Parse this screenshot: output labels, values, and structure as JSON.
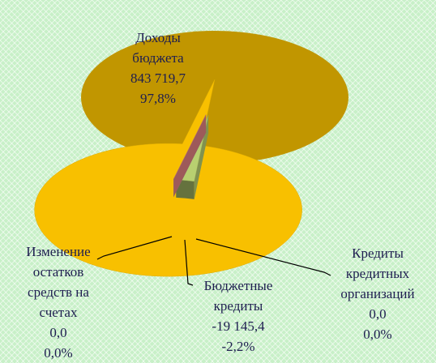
{
  "chart_data": {
    "type": "pie",
    "categories": [
      "Доходы бюджета",
      "Бюджетные кредиты",
      "Кредиты кредитных организаций",
      "Изменение остатков средств на счетах"
    ],
    "amounts": [
      843719.7,
      -19145.4,
      0,
      0
    ],
    "amount_labels": [
      "843 719,7",
      "-19 145,4",
      "0,0",
      "0,0"
    ],
    "values": [
      97.8,
      -2.2,
      0,
      0
    ],
    "value_labels": [
      "97,8%",
      "-2,2%",
      "0,0%",
      "0,0%"
    ],
    "colors": [
      "#f8c000",
      "#b8d070",
      "#8fb0e0",
      "#e08080"
    ]
  }
}
